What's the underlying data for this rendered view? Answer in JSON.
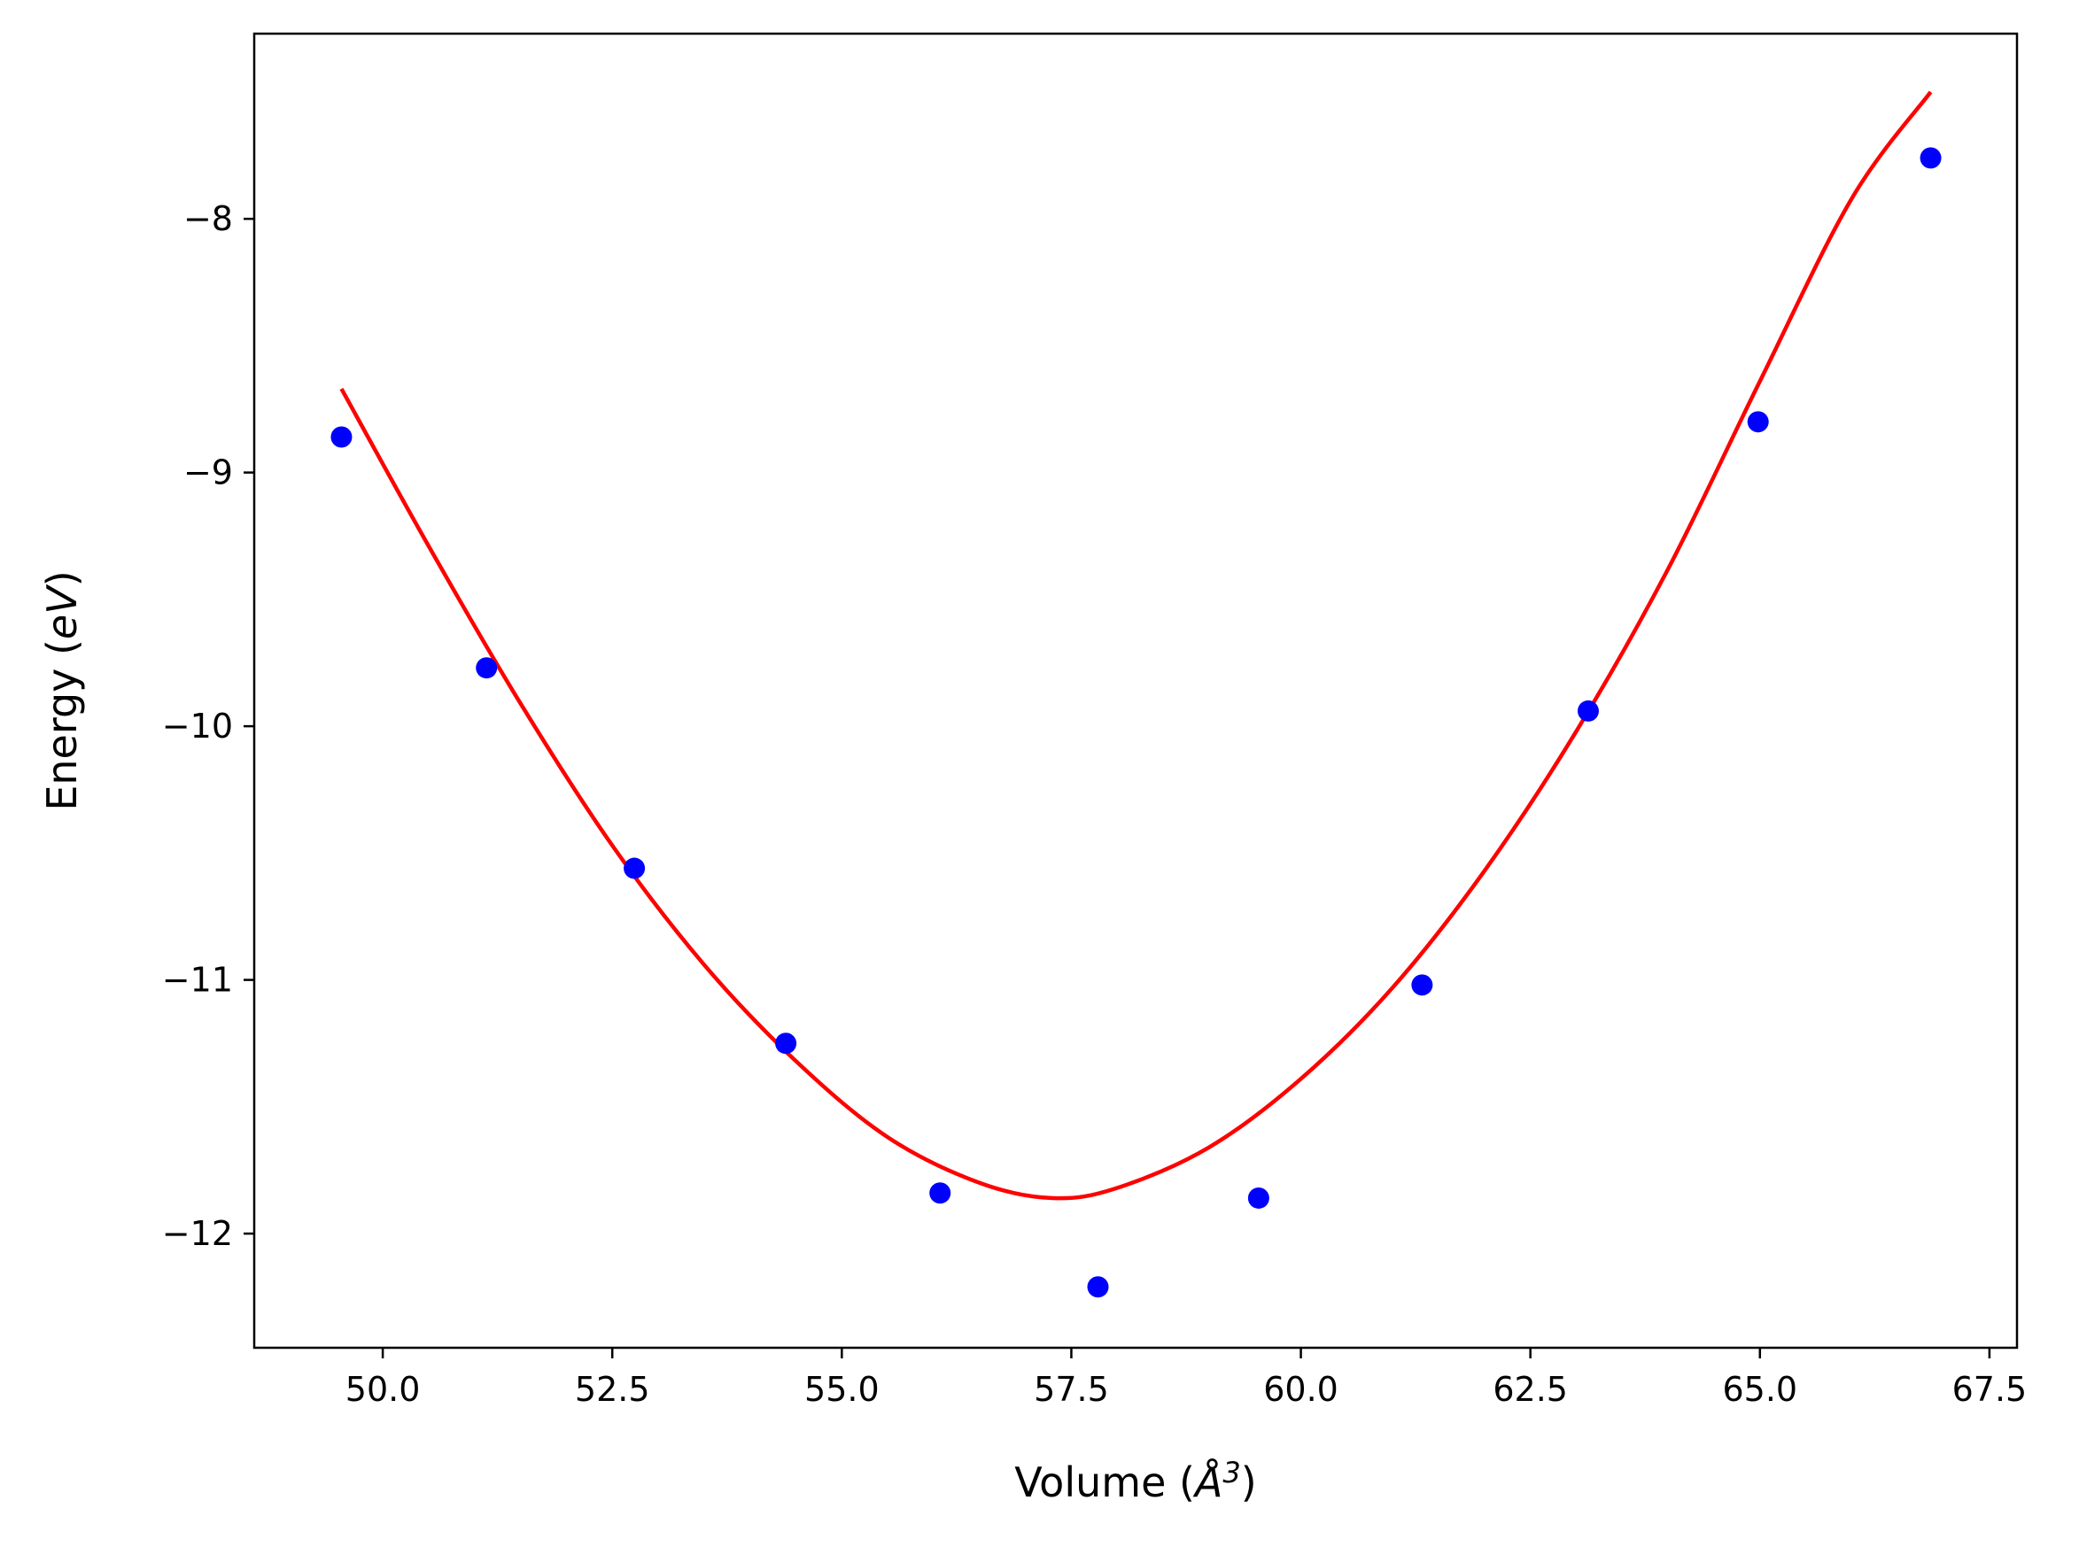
{
  "chart_data": {
    "type": "scatter",
    "title": "",
    "xlabel": "Volume (Å³)",
    "xlabel_parts": {
      "prefix": "Volume (",
      "symbol": "Å",
      "superscript": "3",
      "suffix": ")"
    },
    "ylabel": "Energy (eV)",
    "ylabel_parts": {
      "prefix": "Energy (",
      "italic": "eV",
      "suffix": ")"
    },
    "xlim": [
      48.6,
      67.8
    ],
    "ylim": [
      -12.45,
      -7.27
    ],
    "xticks": [
      50.0,
      52.5,
      55.0,
      57.5,
      60.0,
      62.5,
      65.0,
      67.5
    ],
    "xtick_labels": [
      "50.0",
      "52.5",
      "55.0",
      "57.5",
      "60.0",
      "62.5",
      "65.0",
      "67.5"
    ],
    "yticks": [
      -12,
      -11,
      -10,
      -9,
      -8
    ],
    "ytick_labels": [
      "−12",
      "−11",
      "−10",
      "−9",
      "−8"
    ],
    "grid": false,
    "legend": "none",
    "series": [
      {
        "kind": "scatter",
        "color": "#0000ff",
        "x": [
          49.55,
          51.13,
          52.74,
          54.39,
          56.07,
          57.79,
          59.54,
          61.32,
          63.13,
          64.98,
          66.86
        ],
        "y": [
          -8.86,
          -9.77,
          -10.56,
          -11.25,
          -11.84,
          -12.21,
          -11.86,
          -11.02,
          -9.94,
          -8.8,
          -7.76
        ]
      },
      {
        "kind": "line",
        "color": "#ff0000",
        "x": [
          49.55,
          50.5,
          51.5,
          52.5,
          53.5,
          54.5,
          55.5,
          56.5,
          57.3,
          58.0,
          59.0,
          60.0,
          61.0,
          62.0,
          63.0,
          64.0,
          65.0,
          66.0,
          66.86
        ],
        "y": [
          -8.67,
          -9.29,
          -9.91,
          -10.47,
          -10.94,
          -11.32,
          -11.62,
          -11.8,
          -11.86,
          -11.82,
          -11.66,
          -11.39,
          -11.03,
          -10.57,
          -10.02,
          -9.38,
          -8.64,
          -7.92,
          -7.5
        ]
      }
    ]
  }
}
